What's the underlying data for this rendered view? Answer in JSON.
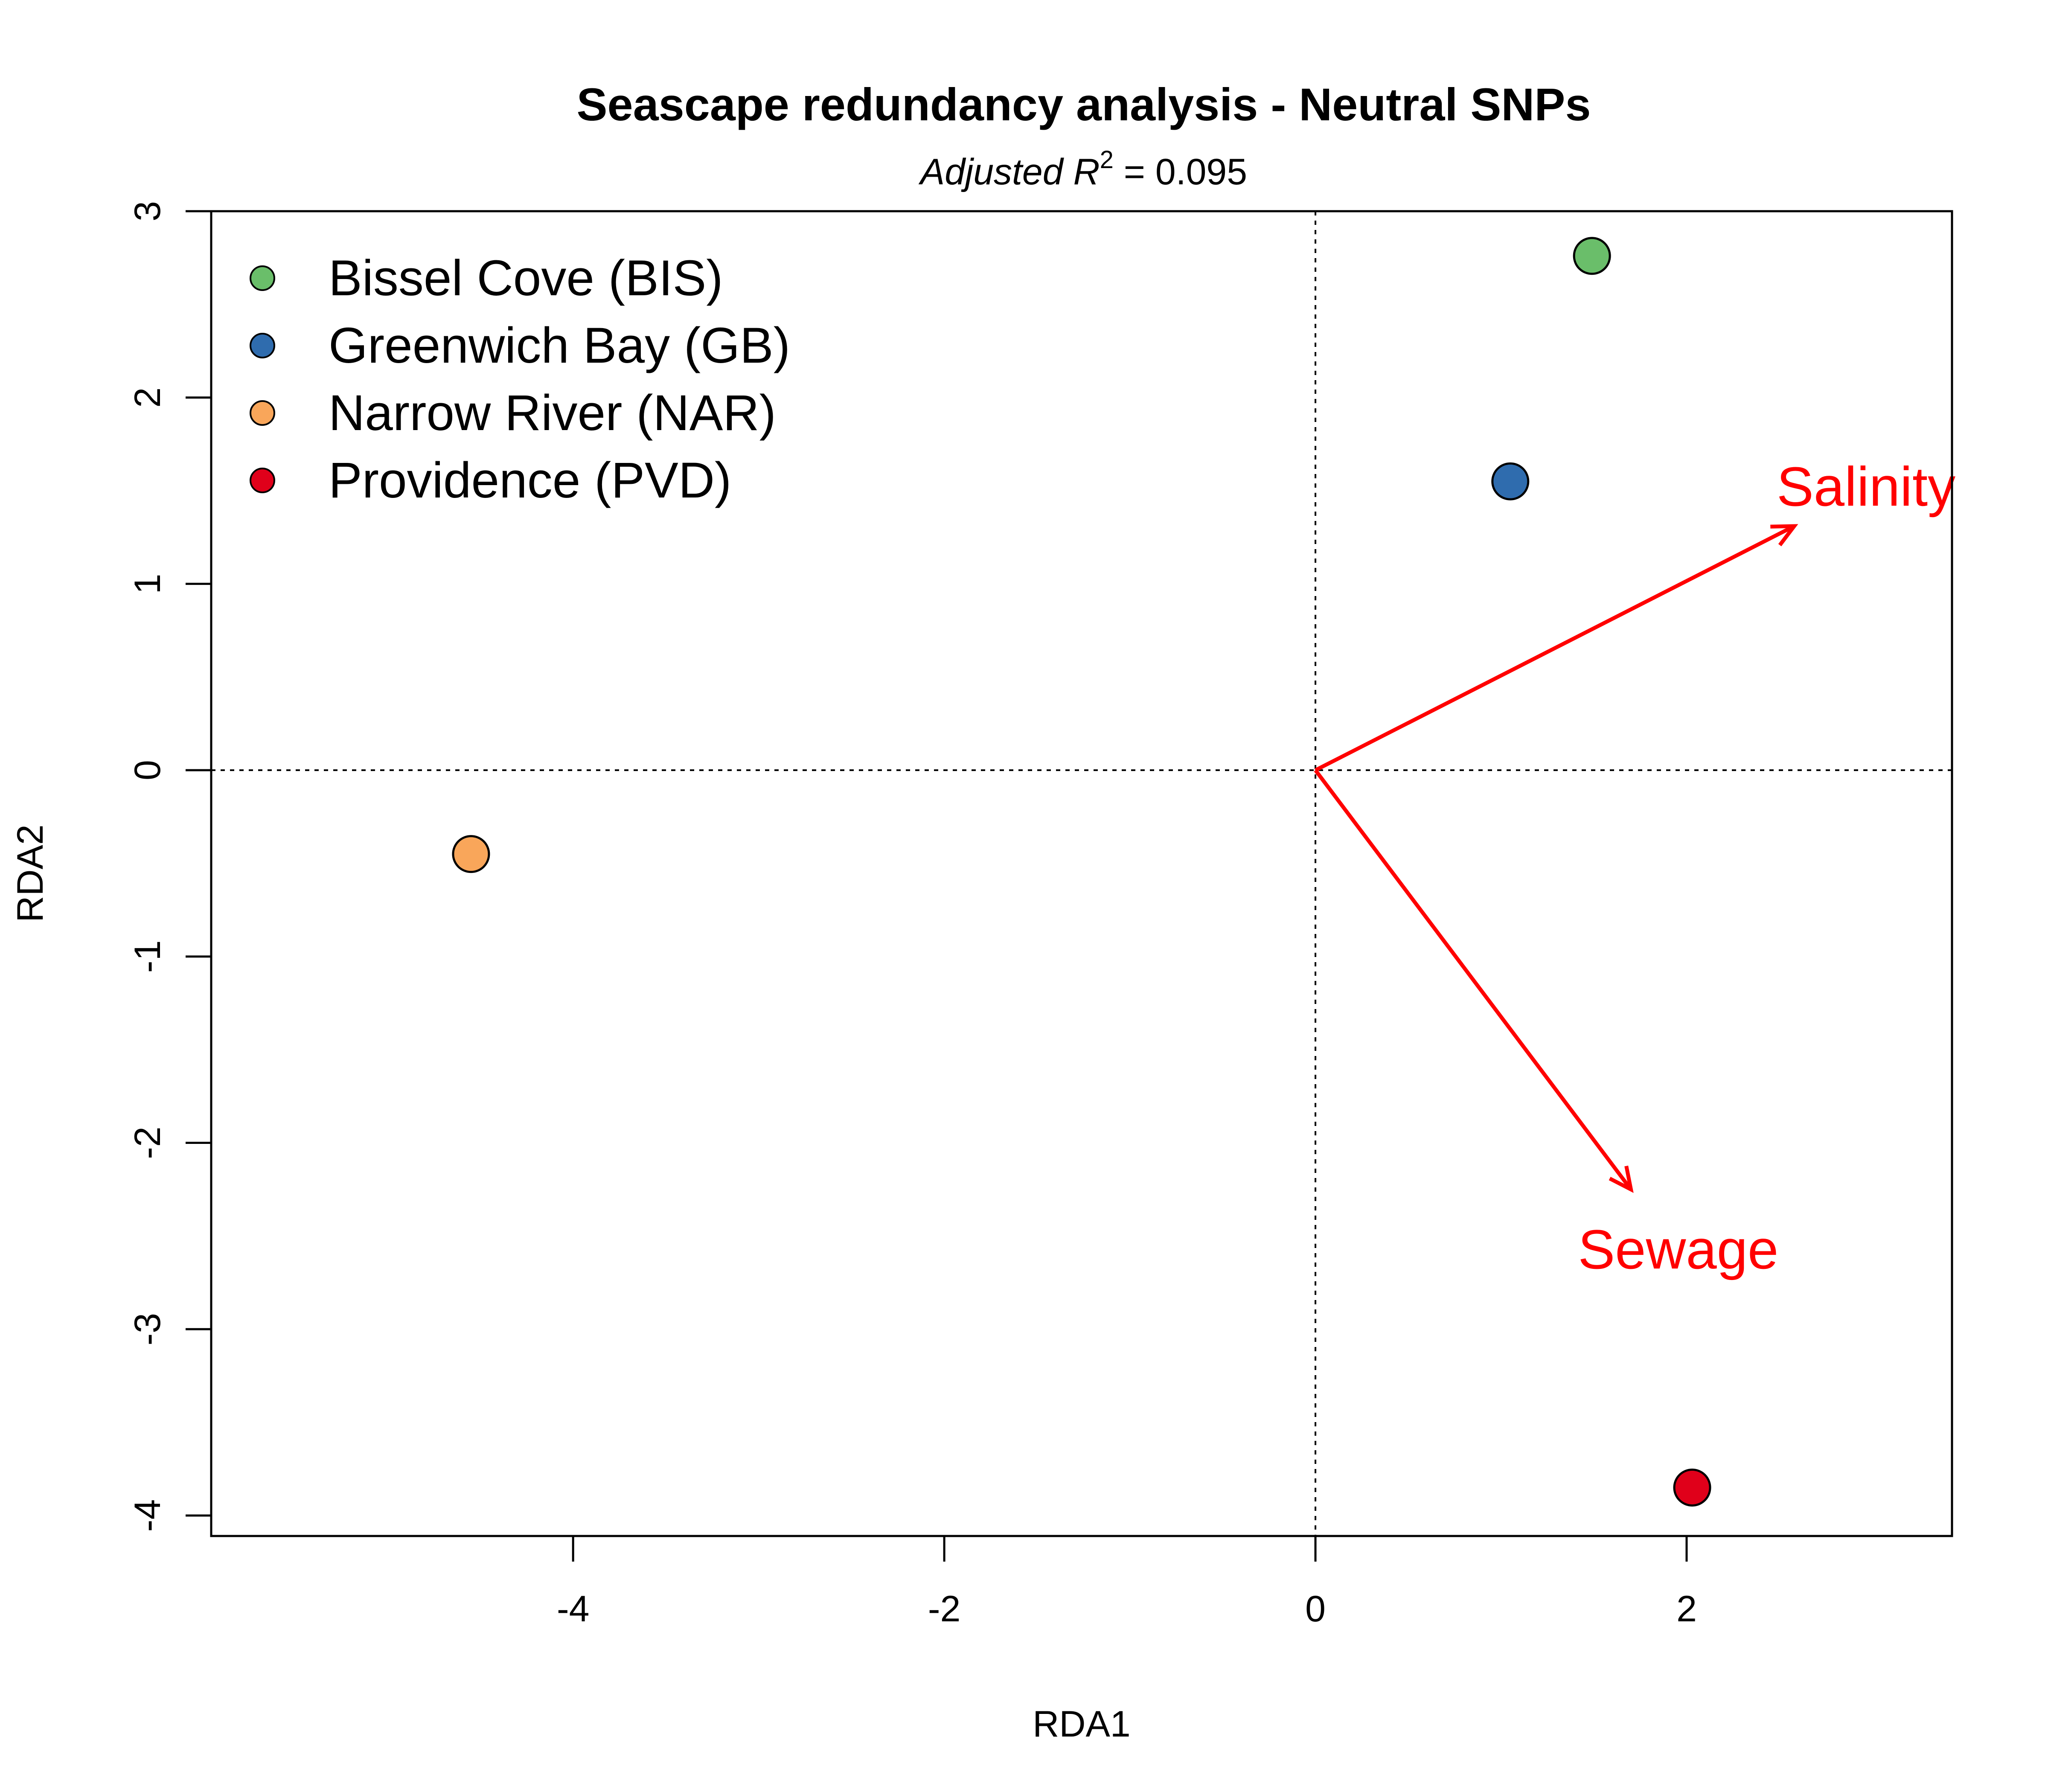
{
  "chart_data": {
    "type": "scatter",
    "title": "Seascape redundancy analysis - Neutral SNPs",
    "subtitle": {
      "prefix": "Adjusted ",
      "variable": "R",
      "exponent": "2",
      "operator": " = ",
      "value": "0.095"
    },
    "xlabel": "RDA1",
    "ylabel": "RDA2",
    "xlim": [
      -5.95,
      3.43
    ],
    "ylim": [
      -4.11,
      3.0
    ],
    "xticks": [
      -4,
      -2,
      0,
      2
    ],
    "yticks": [
      -4,
      -3,
      -2,
      -1,
      0,
      1,
      2,
      3
    ],
    "reference_lines": {
      "x": 0,
      "y": 0,
      "style": "dotted"
    },
    "legend": {
      "position": "top-left"
    },
    "series": [
      {
        "name": "Bissel Cove (BIS)",
        "color": "#6ABE6A",
        "x": 1.49,
        "y": 2.76
      },
      {
        "name": "Greenwich Bay (GB)",
        "color": "#2F6CAE",
        "x": 1.05,
        "y": 1.55
      },
      {
        "name": "Narrow River (NAR)",
        "color": "#F9A65A",
        "x": -4.55,
        "y": -0.45
      },
      {
        "name": "Providence (PVD)",
        "color": "#E0001A",
        "x": 2.03,
        "y": -3.85
      }
    ],
    "vectors": [
      {
        "name": "Salinity",
        "color": "#FF0000",
        "x": 2.58,
        "y": 1.31
      },
      {
        "name": "Sewage",
        "color": "#FF0000",
        "x": 1.7,
        "y": -2.25
      }
    ]
  }
}
